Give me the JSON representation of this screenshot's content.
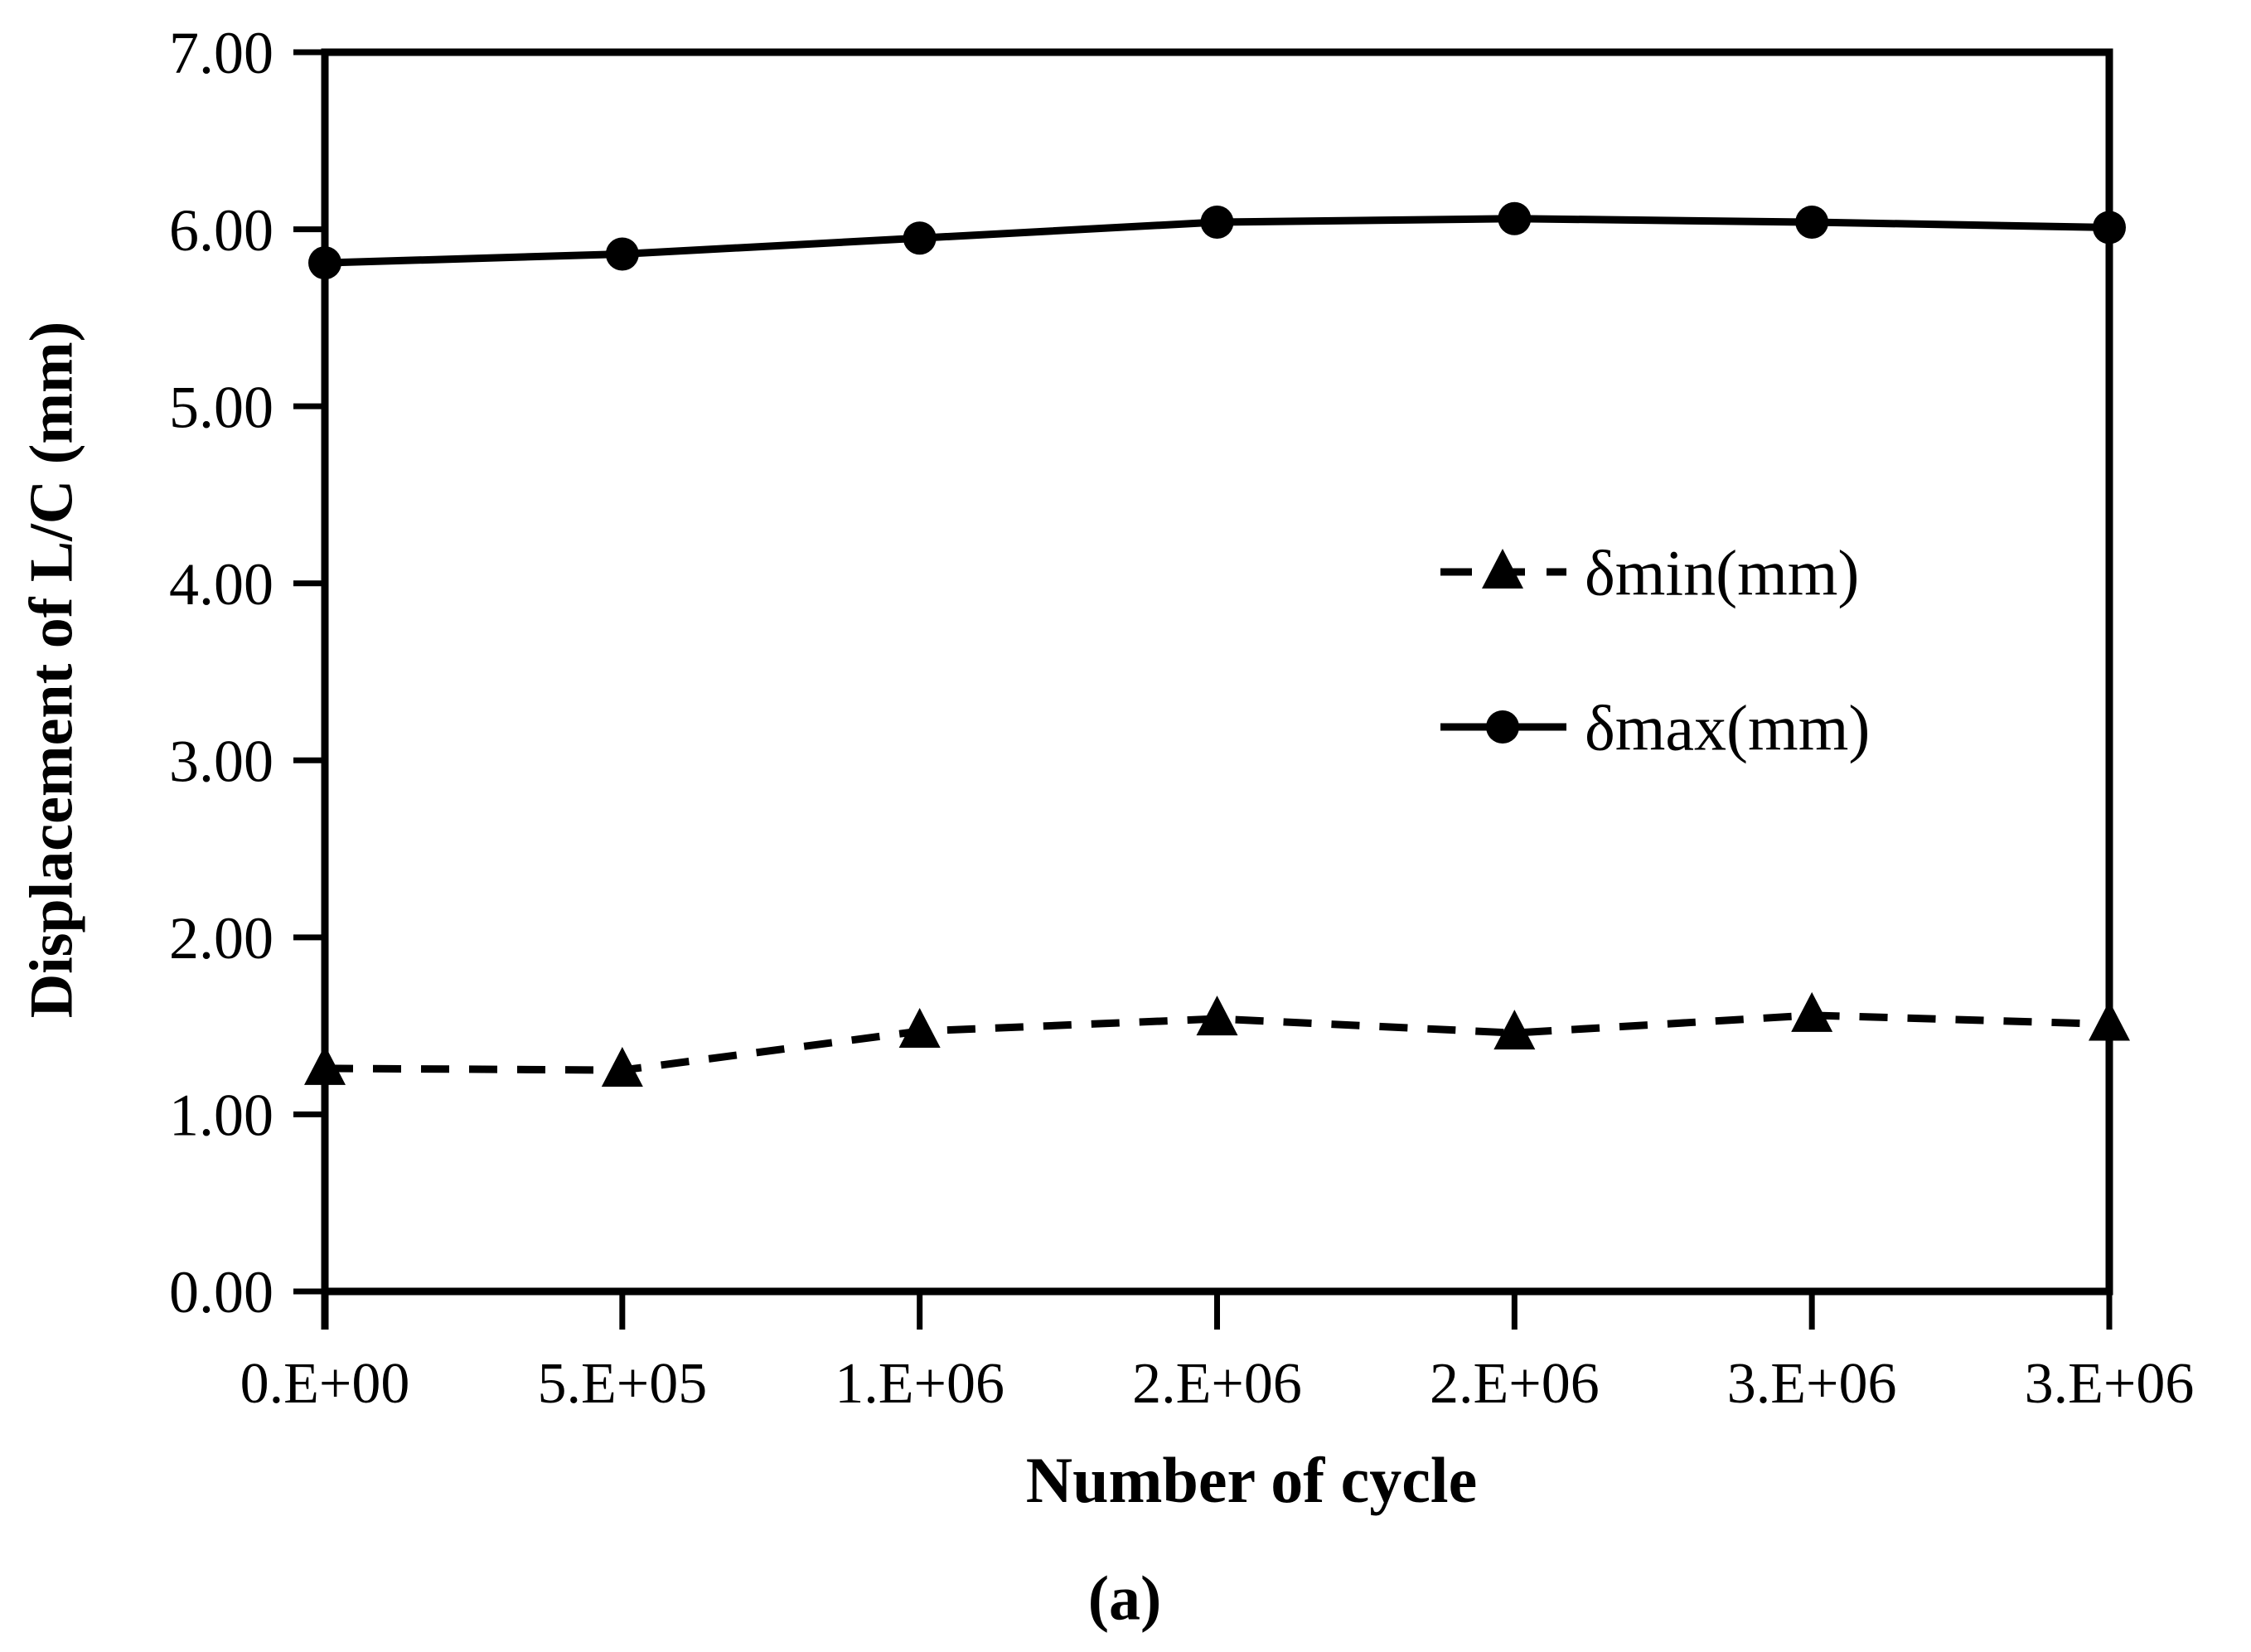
{
  "figure": {
    "caption": "(a)",
    "background": "#ffffff",
    "ink_color": "#000000"
  },
  "chart_data": {
    "type": "line",
    "title": "",
    "xlabel": "Number of cycle",
    "ylabel": "Displacement of L/C (mm)",
    "x_tick_labels": [
      "0.E+00",
      "5.E+05",
      "1.E+06",
      "2.E+06",
      "2.E+06",
      "3.E+06",
      "3.E+06"
    ],
    "y_tick_labels": [
      "0.00",
      "1.00",
      "2.00",
      "3.00",
      "4.00",
      "5.00",
      "6.00",
      "7.00"
    ],
    "ylim": [
      0,
      7
    ],
    "grid": false,
    "legend_position": "inside-right",
    "series": [
      {
        "name": "δmin(mm)",
        "marker": "triangle",
        "line_style": "dashed",
        "color": "#000000",
        "values": [
          1.26,
          1.25,
          1.47,
          1.54,
          1.46,
          1.56,
          1.51
        ]
      },
      {
        "name": "δmax(mm)",
        "marker": "circle",
        "line_style": "solid",
        "color": "#000000",
        "values": [
          5.81,
          5.86,
          5.95,
          6.04,
          6.06,
          6.04,
          6.01
        ]
      }
    ]
  }
}
